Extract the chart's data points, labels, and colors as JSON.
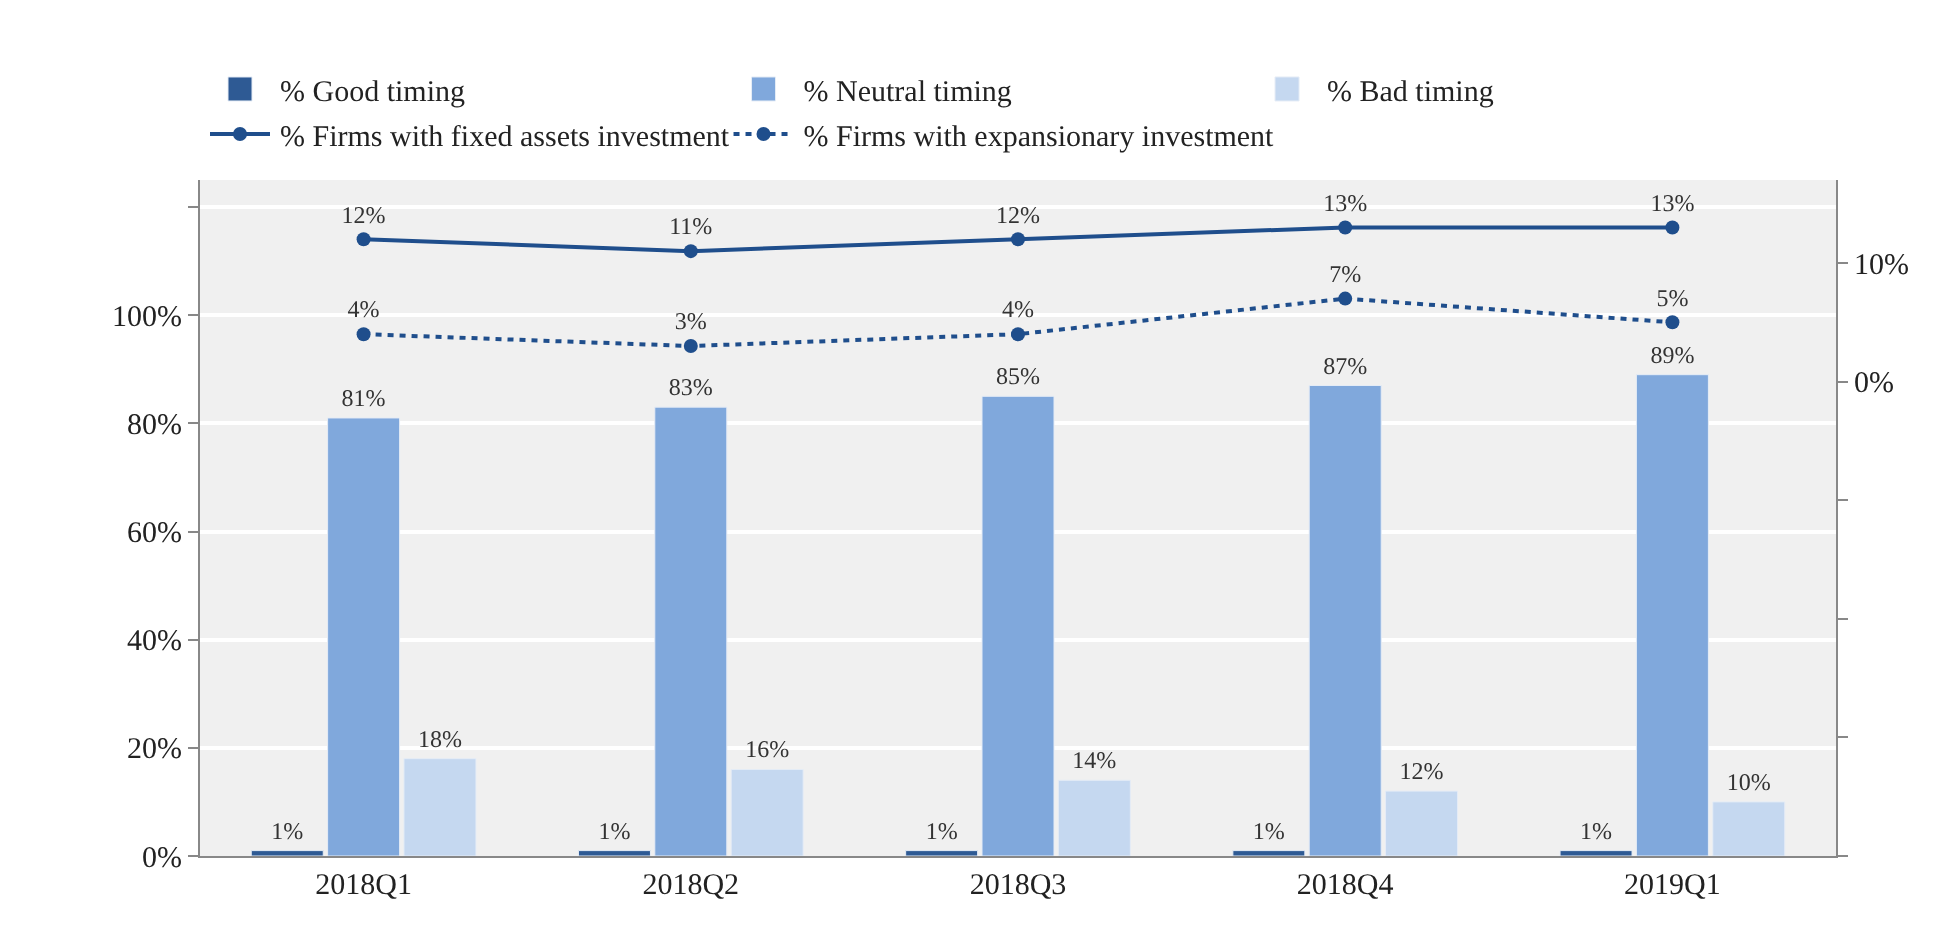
{
  "chart_data": {
    "type": "bar",
    "categories": [
      "2018Q1",
      "2018Q2",
      "2018Q3",
      "2018Q4",
      "2019Q1"
    ],
    "series": [
      {
        "name": "% Good timing",
        "color": "#2e5a94",
        "values": [
          1,
          1,
          1,
          1,
          1
        ],
        "value_labels": [
          "1%",
          "1%",
          "1%",
          "1%",
          "1%"
        ]
      },
      {
        "name": "% Neutral timing",
        "color": "#80a8dc",
        "values": [
          81,
          83,
          85,
          87,
          89
        ],
        "value_labels": [
          "81%",
          "83%",
          "85%",
          "87%",
          "89%"
        ]
      },
      {
        "name": "% Bad timing",
        "color": "#c5d8f0",
        "values": [
          18,
          16,
          14,
          12,
          10
        ],
        "value_labels": [
          "18%",
          "16%",
          "14%",
          "12%",
          "10%"
        ]
      },
      {
        "name": "% Firms with fixed assets investment",
        "type": "line",
        "axis": "y2",
        "color": "#1f4e8c",
        "line_style": "solid",
        "marker": "circle",
        "values": [
          12,
          11,
          12,
          13,
          13
        ],
        "value_labels": [
          "12%",
          "11%",
          "12%",
          "13%",
          "13%"
        ]
      },
      {
        "name": "% Firms with expansionary investment",
        "type": "line",
        "axis": "y2",
        "color": "#1f4e8c",
        "line_style": "dotted",
        "marker": "circle",
        "values": [
          4,
          3,
          4,
          7,
          5
        ],
        "value_labels": [
          "4%",
          "3%",
          "4%",
          "7%",
          "5%"
        ]
      }
    ],
    "ylim": [
      0,
      125
    ],
    "yticks": [
      {
        "value": 0,
        "label": "0%"
      },
      {
        "value": 20,
        "label": "20%"
      },
      {
        "value": 40,
        "label": "40%"
      },
      {
        "value": 60,
        "label": "60%"
      },
      {
        "value": 80,
        "label": "80%"
      },
      {
        "value": 100,
        "label": "100%"
      },
      {
        "value": 120,
        "label": null
      }
    ],
    "y2lim": [
      -40,
      17
    ],
    "y2ticks": [
      {
        "value": -40,
        "label": null
      },
      {
        "value": -30,
        "label": null
      },
      {
        "value": -20,
        "label": null
      },
      {
        "value": -10,
        "label": null
      },
      {
        "value": 0,
        "label": "0%"
      },
      {
        "value": 10,
        "label": "10%"
      }
    ],
    "grid": "y",
    "legend": "top"
  }
}
